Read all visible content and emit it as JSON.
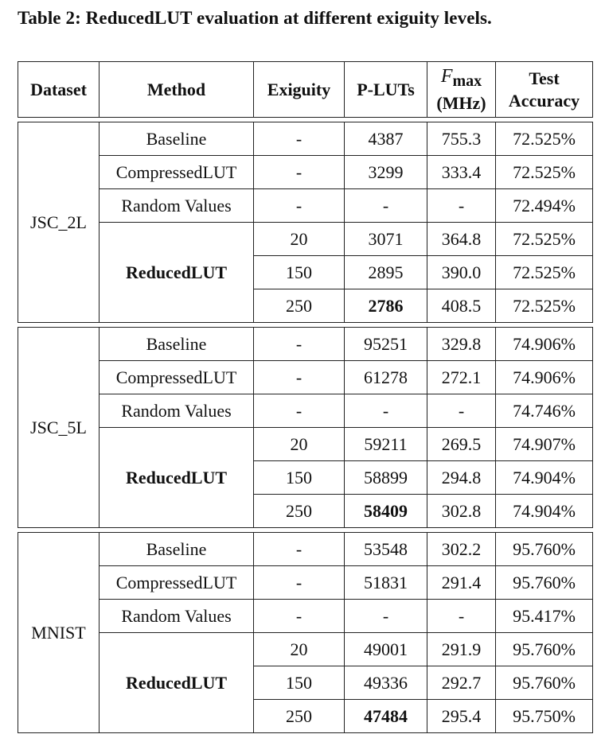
{
  "caption": "Table 2: ReducedLUT evaluation at different exiguity levels.",
  "headers": {
    "dataset": "Dataset",
    "method": "Method",
    "exiguity": "Exiguity",
    "plut": "P-LUTs",
    "fmax_symbol": "F",
    "fmax_sub": "max",
    "fmax_unit": "(MHz)",
    "acc_line1": "Test",
    "acc_line2": "Accuracy"
  },
  "groups": [
    {
      "dataset": "JSC_2L",
      "baseline": {
        "method": "Baseline",
        "exiguity": "-",
        "plut": "4387",
        "fmax": "755.3",
        "acc": "72.525%"
      },
      "compressed": {
        "method": "CompressedLUT",
        "exiguity": "-",
        "plut": "3299",
        "fmax": "333.4",
        "acc": "72.525%"
      },
      "random": {
        "method": "Random Values",
        "exiguity": "-",
        "plut": "-",
        "fmax": "-",
        "acc": "72.494%"
      },
      "reduced_method": "ReducedLUT",
      "reduced": [
        {
          "exiguity": "20",
          "plut": "3071",
          "fmax": "364.8",
          "acc": "72.525%"
        },
        {
          "exiguity": "150",
          "plut": "2895",
          "fmax": "390.0",
          "acc": "72.525%"
        },
        {
          "exiguity": "250",
          "plut": "2786",
          "fmax": "408.5",
          "acc": "72.525%"
        }
      ]
    },
    {
      "dataset": "JSC_5L",
      "baseline": {
        "method": "Baseline",
        "exiguity": "-",
        "plut": "95251",
        "fmax": "329.8",
        "acc": "74.906%"
      },
      "compressed": {
        "method": "CompressedLUT",
        "exiguity": "-",
        "plut": "61278",
        "fmax": "272.1",
        "acc": "74.906%"
      },
      "random": {
        "method": "Random Values",
        "exiguity": "-",
        "plut": "-",
        "fmax": "-",
        "acc": "74.746%"
      },
      "reduced_method": "ReducedLUT",
      "reduced": [
        {
          "exiguity": "20",
          "plut": "59211",
          "fmax": "269.5",
          "acc": "74.907%"
        },
        {
          "exiguity": "150",
          "plut": "58899",
          "fmax": "294.8",
          "acc": "74.904%"
        },
        {
          "exiguity": "250",
          "plut": "58409",
          "fmax": "302.8",
          "acc": "74.904%"
        }
      ]
    },
    {
      "dataset": "MNIST",
      "baseline": {
        "method": "Baseline",
        "exiguity": "-",
        "plut": "53548",
        "fmax": "302.2",
        "acc": "95.760%"
      },
      "compressed": {
        "method": "CompressedLUT",
        "exiguity": "-",
        "plut": "51831",
        "fmax": "291.4",
        "acc": "95.760%"
      },
      "random": {
        "method": "Random Values",
        "exiguity": "-",
        "plut": "-",
        "fmax": "-",
        "acc": "95.417%"
      },
      "reduced_method": "ReducedLUT",
      "reduced": [
        {
          "exiguity": "20",
          "plut": "49001",
          "fmax": "291.9",
          "acc": "95.760%"
        },
        {
          "exiguity": "150",
          "plut": "49336",
          "fmax": "292.7",
          "acc": "95.760%"
        },
        {
          "exiguity": "250",
          "plut": "47484",
          "fmax": "295.4",
          "acc": "95.750%"
        }
      ]
    }
  ]
}
